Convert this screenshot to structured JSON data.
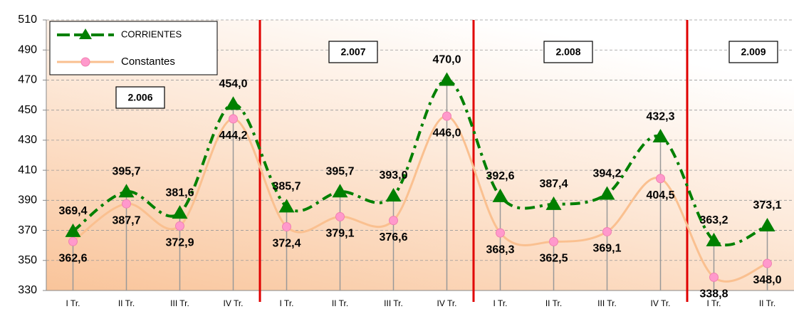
{
  "chart_data": {
    "type": "line",
    "categories": [
      "I Tr.",
      "II Tr.",
      "III Tr.",
      "IV Tr.",
      "I Tr.",
      "II Tr.",
      "III Tr.",
      "IV Tr.",
      "I Tr.",
      "II Tr.",
      "III Tr.",
      "IV Tr.",
      "I Tr.",
      "II Tr."
    ],
    "series": [
      {
        "name": "CORRIENTES",
        "color": "#008000",
        "values": [
          369.4,
          395.7,
          381.6,
          454.0,
          385.7,
          395.7,
          393.0,
          470.0,
          392.6,
          387.4,
          394.2,
          432.3,
          363.2,
          373.1
        ],
        "value_labels": [
          "369,4",
          "395,7",
          "381,6",
          "454,0",
          "385,7",
          "395,7",
          "393,0",
          "470,0",
          "392,6",
          "387,4",
          "394,2",
          "432,3",
          "363,2",
          "373,1"
        ]
      },
      {
        "name": "Constantes",
        "color": "#fac090",
        "values": [
          362.6,
          387.7,
          372.9,
          444.2,
          372.4,
          379.1,
          376.6,
          446.0,
          368.3,
          362.5,
          369.1,
          404.5,
          338.8,
          348.0
        ],
        "value_labels": [
          "362,6",
          "387,7",
          "372,9",
          "444,2",
          "372,4",
          "379,1",
          "376,6",
          "446,0",
          "368,3",
          "362,5",
          "369,1",
          "404,5",
          "338,8",
          "348,0"
        ]
      }
    ],
    "annotations": [
      "2.006",
      "2.007",
      "2.008",
      "2.009"
    ],
    "ylim": [
      330,
      510
    ],
    "yticks": [
      330,
      350,
      370,
      390,
      410,
      430,
      450,
      470,
      490,
      510
    ],
    "grid": true
  }
}
